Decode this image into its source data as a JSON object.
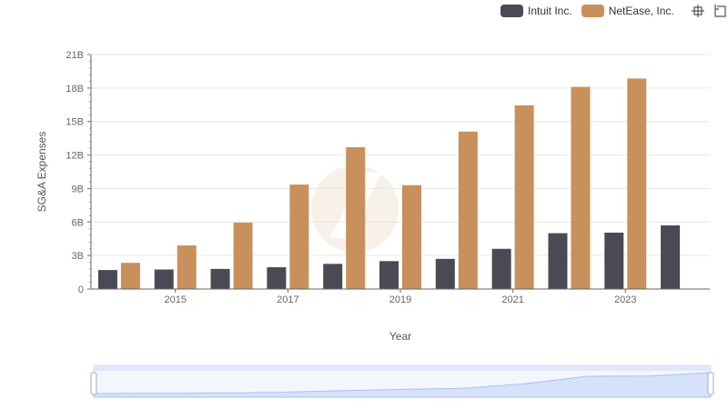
{
  "legend": {
    "items": [
      {
        "label": "Intuit Inc.",
        "color": "#4a4a55"
      },
      {
        "label": "NetEase, Inc.",
        "color": "#c8905b"
      }
    ],
    "placement": "top-right"
  },
  "toolbox": {
    "icons": [
      "zoom-icon",
      "restore-icon"
    ]
  },
  "chart_data": {
    "type": "bar",
    "xlabel": "Year",
    "ylabel": "SG&A Expenses",
    "x": [
      2014,
      2015,
      2016,
      2017,
      2018,
      2019,
      2020,
      2021,
      2022,
      2023,
      2024
    ],
    "x_tick_labels": [
      "2015",
      "2017",
      "2019",
      "2021",
      "2023"
    ],
    "y_tick_labels": [
      "0",
      "3B",
      "6B",
      "9B",
      "12B",
      "15B",
      "18B",
      "21B"
    ],
    "ylim": [
      0,
      21
    ],
    "y_unit": "billions",
    "grid": true,
    "series": [
      {
        "name": "Intuit Inc.",
        "color": "#4a4a55",
        "values": [
          1.7,
          1.75,
          1.8,
          1.95,
          2.25,
          2.5,
          2.7,
          3.6,
          5.0,
          5.05,
          5.7
        ]
      },
      {
        "name": "NetEase, Inc.",
        "color": "#c8905b",
        "values": [
          2.35,
          3.9,
          5.95,
          9.35,
          12.7,
          9.3,
          14.1,
          16.45,
          18.1,
          18.85,
          null
        ]
      }
    ],
    "data_zoom": {
      "start": 0,
      "end": 100
    }
  }
}
